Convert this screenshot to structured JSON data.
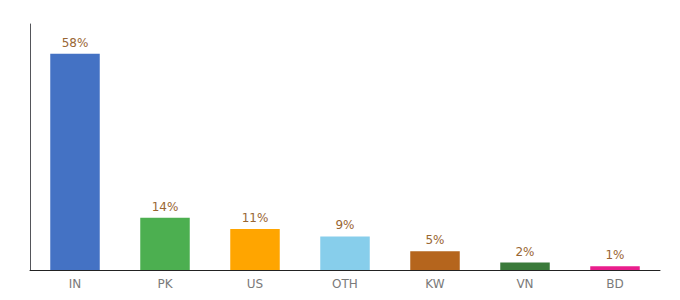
{
  "chart_data": {
    "type": "bar",
    "categories": [
      "IN",
      "PK",
      "US",
      "OTH",
      "KW",
      "VN",
      "BD"
    ],
    "values": [
      58,
      14,
      11,
      9,
      5,
      2,
      1
    ],
    "value_labels": [
      "58%",
      "14%",
      "11%",
      "9%",
      "5%",
      "2%",
      "1%"
    ],
    "colors": [
      "#4472c4",
      "#4caf50",
      "#ffa500",
      "#87ceeb",
      "#b5651d",
      "#3a7a3a",
      "#e91e8c"
    ],
    "ylim": [
      0,
      66
    ],
    "data_labels": true,
    "tick_labels": "x",
    "grid": false
  }
}
